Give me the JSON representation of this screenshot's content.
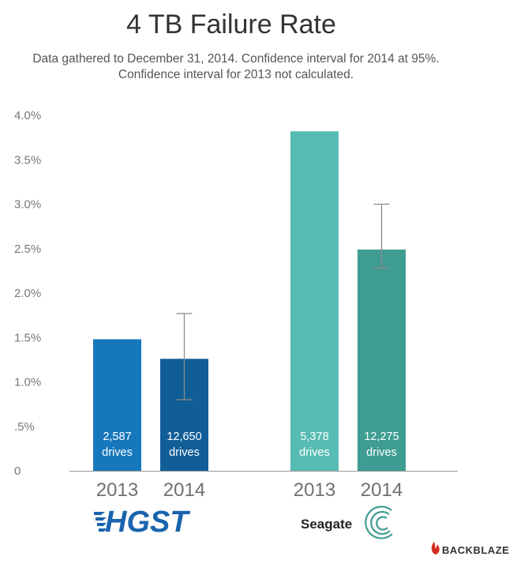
{
  "chart_data": {
    "type": "bar",
    "title": "4 TB Failure Rate",
    "subtitle": [
      "Data gathered to December 31, 2014. Confidence interval for 2014 at 95%.",
      "Confidence interval for 2013 not calculated."
    ],
    "ylim": [
      0,
      4.0
    ],
    "yticks": [
      {
        "value": 0,
        "label": "0"
      },
      {
        "value": 0.5,
        "label": ".5%"
      },
      {
        "value": 1.0,
        "label": "1.0%"
      },
      {
        "value": 1.5,
        "label": "1.5%"
      },
      {
        "value": 2.0,
        "label": "2.0%"
      },
      {
        "value": 2.5,
        "label": "2.5%"
      },
      {
        "value": 3.0,
        "label": "3.0%"
      },
      {
        "value": 3.5,
        "label": "3.5%"
      },
      {
        "value": 4.0,
        "label": "4.0%"
      }
    ],
    "groups": [
      {
        "name": "HGST",
        "bars": [
          {
            "year": "2013",
            "value": 1.48,
            "count": "2,587",
            "unit": "drives",
            "color": "#1777bc",
            "ci": null
          },
          {
            "year": "2014",
            "value": 1.26,
            "count": "12,650",
            "unit": "drives",
            "color": "#115d97",
            "ci": [
              0.8,
              1.77
            ]
          }
        ]
      },
      {
        "name": "Seagate",
        "bars": [
          {
            "year": "2013",
            "value": 3.82,
            "count": "5,378",
            "unit": "drives",
            "color": "#56bcb3",
            "ci": null
          },
          {
            "year": "2014",
            "value": 2.49,
            "count": "12,275",
            "unit": "drives",
            "color": "#3e9c92",
            "ci": [
              2.28,
              3.0
            ]
          }
        ]
      }
    ],
    "grid": false,
    "legend": "none"
  },
  "logos": {
    "hgst": "HGST",
    "seagate": "Seagate",
    "backblaze": "BACKBLAZE"
  },
  "colors": {
    "axis": "#999999",
    "errorbar": "#8a8a8a",
    "backblaze_red": "#d62b1f"
  },
  "icons": [
    "hgst-logo-icon",
    "seagate-swirl-icon",
    "backblaze-flame-icon"
  ]
}
